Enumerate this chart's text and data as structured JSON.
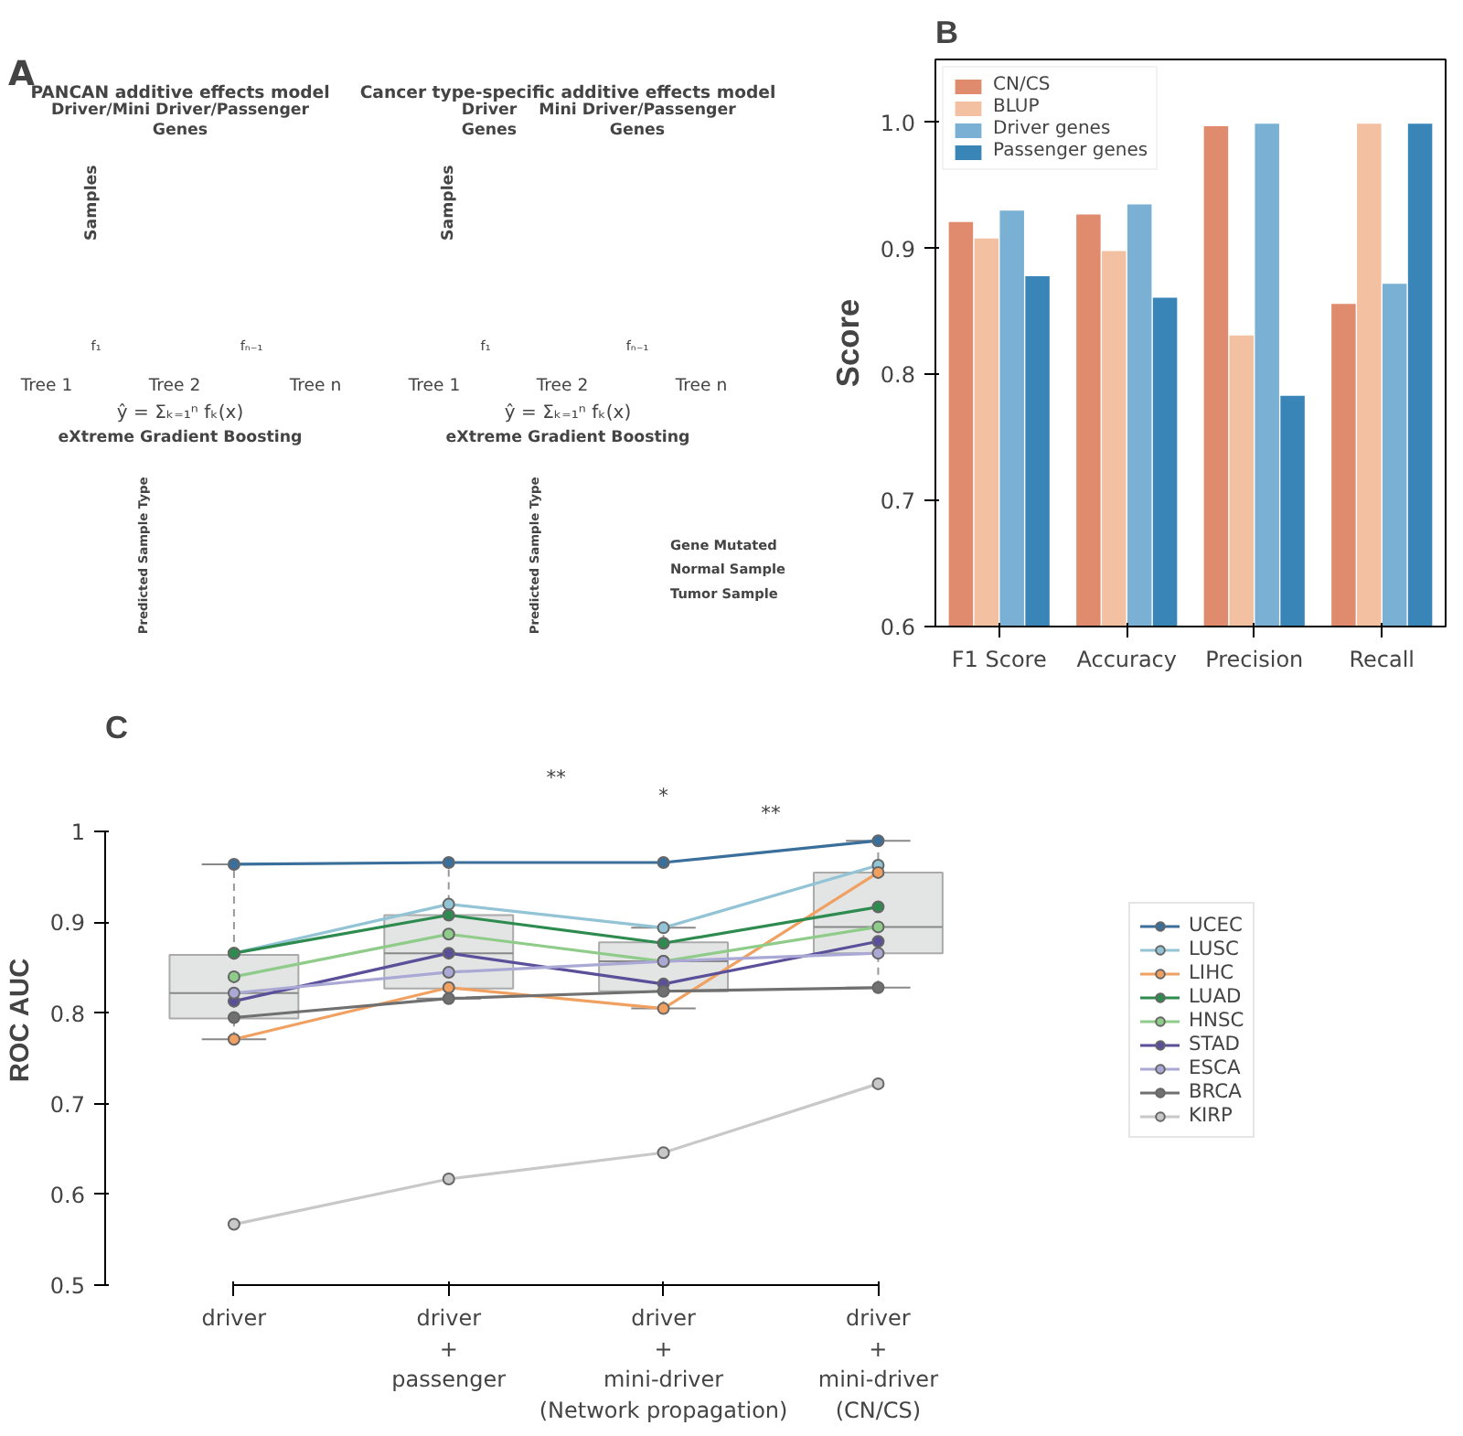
{
  "chart_data": [
    {
      "type": "other",
      "annotations": [
        "A",
        "PANCAN additive effects model",
        "Driver/Mini Driver/Passenger Genes",
        "Samples",
        "Tree 1",
        "Tree 2",
        "Tree n",
        "f₁",
        "fₙ₋₁",
        "ŷ = Σₖ₌₁ⁿ fₖ(x)",
        "eXtreme Gradient Boosting",
        "Predicted Sample Type",
        "Cancer type-specific additive effects model",
        "Driver Genes",
        "Mini Driver/Passenger Genes",
        "Samples",
        "Tree 1",
        "Tree 2",
        "Tree n",
        "f₁",
        "fₙ₋₁",
        "ŷ = Σₖ₌₁ⁿ fₖ(x)",
        "eXtreme Gradient Boosting",
        "Predicted Sample Type",
        "Gene Mutated",
        "Normal Sample",
        "Tumor Sample"
      ]
    },
    {
      "type": "bar",
      "annotations": [
        "B"
      ],
      "ylabel": "Score",
      "categories": [
        "F1 Score",
        "Accuracy",
        "Precision",
        "Recall"
      ],
      "series": [
        {
          "name": "CN/CS",
          "color": "#e08b6e",
          "values": [
            0.921,
            0.927,
            0.997,
            0.856
          ]
        },
        {
          "name": "BLUP",
          "color": "#f4c0a2",
          "values": [
            0.908,
            0.898,
            0.831,
            0.999
          ]
        },
        {
          "name": "Driver genes",
          "color": "#7ab0d3",
          "values": [
            0.93,
            0.935,
            0.999,
            0.872
          ]
        },
        {
          "name": "Passenger genes",
          "color": "#3a85b8",
          "values": [
            0.878,
            0.861,
            0.783,
            0.999
          ]
        }
      ],
      "ylim": [
        0.6,
        1.05
      ],
      "yticks": [
        0.6,
        0.7,
        0.8,
        0.9,
        {
          "value": 1.0,
          "label": "1.0"
        }
      ],
      "legend": "top left",
      "grid": false
    },
    {
      "type": "line",
      "annotations": [
        "C",
        "**",
        "*",
        "**"
      ],
      "ylabel": "ROC AUC",
      "categories": [
        "driver",
        "driver\n+\npassenger",
        "driver\n+\nmini-driver\n(Network propagation)",
        "driver\n+\nmini-driver\n(CN/CS)"
      ],
      "series": [
        {
          "type": "box",
          "color": "#e3e5e5",
          "boxes": [
            {
              "low": 0.771,
              "q1": 0.794,
              "median": 0.822,
              "q3": 0.864,
              "high": 0.964
            },
            {
              "low": 0.816,
              "q1": 0.827,
              "median": 0.866,
              "q3": 0.908,
              "high": 0.966
            },
            {
              "low": 0.805,
              "q1": 0.824,
              "median": 0.857,
              "q3": 0.878,
              "high": 0.894
            },
            {
              "low": 0.828,
              "q1": 0.866,
              "median": 0.895,
              "q3": 0.955,
              "high": 0.99
            }
          ]
        },
        {
          "name": "UCEC",
          "color": "#3a6f9c",
          "values": [
            0.964,
            0.966,
            0.966,
            0.99
          ]
        },
        {
          "name": "LUSC",
          "color": "#93c4d6",
          "values": [
            0.866,
            0.92,
            0.894,
            0.963
          ]
        },
        {
          "name": "LIHC",
          "color": "#f0a060",
          "values": [
            0.771,
            0.828,
            0.805,
            0.955
          ]
        },
        {
          "name": "LUAD",
          "color": "#2e8b4f",
          "values": [
            0.866,
            0.908,
            0.877,
            0.917
          ]
        },
        {
          "name": "HNSC",
          "color": "#8fcc8a",
          "values": [
            0.84,
            0.887,
            0.857,
            0.895
          ]
        },
        {
          "name": "STAD",
          "color": "#5b4f9a",
          "values": [
            0.813,
            0.866,
            0.832,
            0.879
          ]
        },
        {
          "name": "ESCA",
          "color": "#aaa8d4",
          "values": [
            0.822,
            0.845,
            0.857,
            0.866
          ]
        },
        {
          "name": "BRCA",
          "color": "#707070",
          "values": [
            0.795,
            0.816,
            0.824,
            0.828
          ]
        },
        {
          "name": "KIRP",
          "color": "#c8c8c8",
          "values": [
            0.567,
            0.617,
            0.646,
            0.722
          ]
        }
      ],
      "ylim": [
        0.5,
        1.0
      ],
      "yticks": [
        0.5,
        0.6,
        0.7,
        0.8,
        0.9,
        1
      ],
      "marker": "circle",
      "legend": "right",
      "grid": false
    }
  ]
}
